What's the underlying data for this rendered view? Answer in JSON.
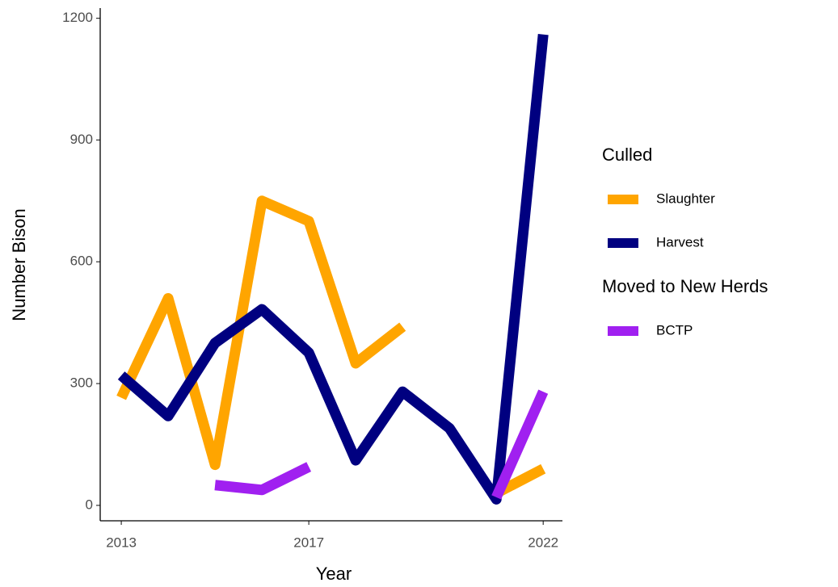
{
  "chart_data": {
    "type": "line",
    "x": [
      2013,
      2014,
      2015,
      2016,
      2017,
      2018,
      2019,
      2020,
      2021,
      2022
    ],
    "x_label": "Year",
    "y_label": "Number Bison",
    "series": [
      {
        "name": "Slaughter",
        "group": "Culled",
        "color": "#FFA500",
        "values": [
          265,
          510,
          100,
          750,
          700,
          350,
          440,
          null,
          30,
          90
        ]
      },
      {
        "name": "Harvest",
        "group": "Culled",
        "color": "#000080",
        "values": [
          320,
          220,
          400,
          483,
          376,
          111,
          280,
          190,
          15,
          1160
        ]
      },
      {
        "name": "BCTP",
        "group": "Moved to New Herds",
        "color": "#A020F0",
        "values": [
          null,
          null,
          50,
          38,
          95,
          null,
          null,
          null,
          20,
          280
        ]
      }
    ],
    "xlim": [
      2012.55,
      2022.41
    ],
    "xticks": [
      2013,
      2017,
      2022
    ],
    "ylim": [
      -38,
      1225
    ],
    "yticks": [
      0,
      300,
      600,
      900,
      1200
    ],
    "grid": false
  }
}
